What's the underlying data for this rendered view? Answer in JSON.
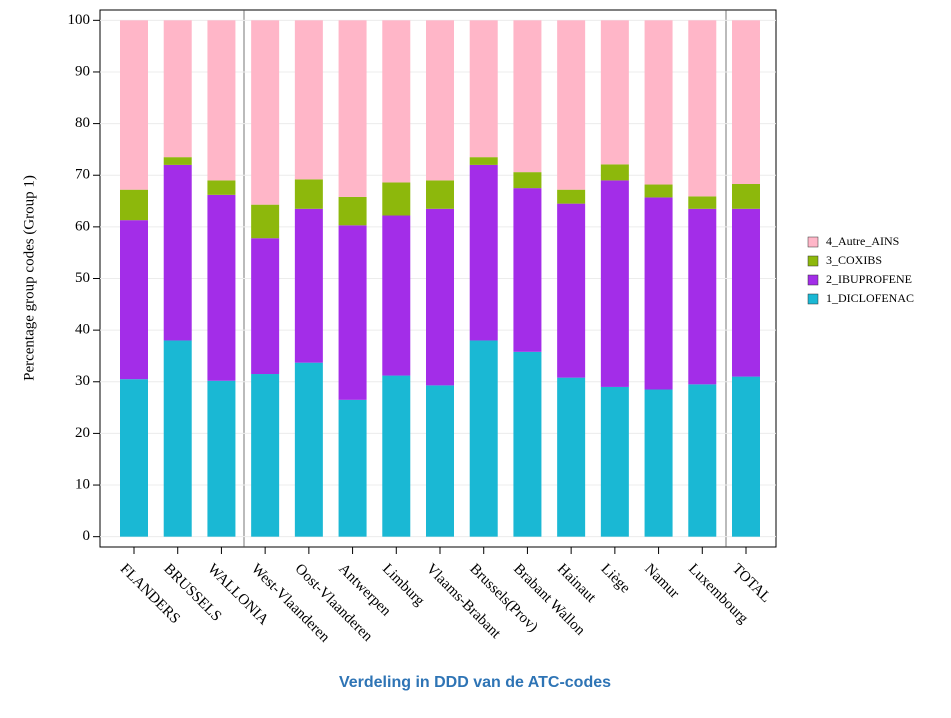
{
  "chart_data": {
    "type": "stacked_bar",
    "title": "Verdeling in DDD van de ATC-codes",
    "y_label": "Percentage group codes (Group 1)",
    "categories": [
      "FLANDERS",
      "BRUSSELS",
      "WALLONIA",
      "West-Vlaanderen",
      "Oost-Vlaanderen",
      "Antwerpen",
      "Limburg",
      "Vlaams-Brabant",
      "Brussels(Prov)",
      "Brabant Wallon",
      "Hainaut",
      "Liège",
      "Namur",
      "Luxembourg",
      "TOTAL"
    ],
    "series": [
      {
        "name": "1_DICLOFENAC",
        "color": "#1ab8d4",
        "values": [
          30.5,
          38,
          30.2,
          31.5,
          33.7,
          26.5,
          31.2,
          29.3,
          38,
          35.8,
          30.8,
          29,
          28.5,
          29.5,
          31
        ]
      },
      {
        "name": "2_IBUPROFENE",
        "color": "#a32de8",
        "values": [
          30.8,
          34,
          36,
          26.3,
          29.8,
          33.8,
          31,
          34.2,
          34,
          31.7,
          33.7,
          40,
          37.2,
          34,
          32.5
        ]
      },
      {
        "name": "3_COXIBS",
        "color": "#8db80c",
        "values": [
          5.9,
          1.5,
          2.8,
          6.5,
          5.7,
          5.5,
          6.4,
          5.5,
          1.5,
          3.1,
          2.7,
          3.1,
          2.5,
          2.4,
          4.8
        ]
      },
      {
        "name": "4_Autre_AINS",
        "color": "#ffb6c8",
        "values": [
          32.8,
          26.5,
          31,
          35.7,
          30.8,
          34.2,
          31.4,
          31,
          26.5,
          29.4,
          32.8,
          27.9,
          31.8,
          34.1,
          31.7
        ]
      }
    ],
    "ylim": [
      -2,
      102
    ],
    "yticks": [
      0,
      10,
      20,
      30,
      40,
      50,
      60,
      70,
      80,
      90,
      100
    ],
    "grid": true
  }
}
